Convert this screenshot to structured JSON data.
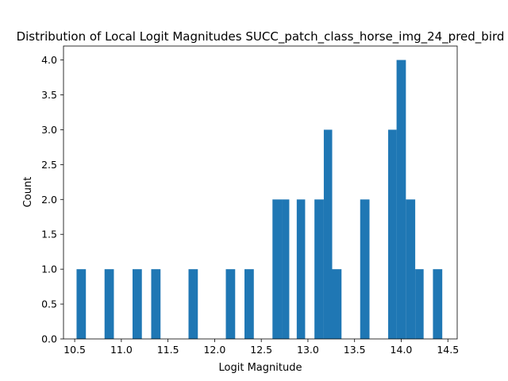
{
  "chart_data": {
    "type": "bar",
    "title": "Distribution of Local Logit Magnitudes SUCC_patch_class_horse_img_24_pred_bird",
    "xlabel": "Logit Magnitude",
    "ylabel": "Count",
    "xlim": [
      10.38,
      14.6
    ],
    "ylim": [
      0,
      4.2
    ],
    "xticks": [
      10.5,
      11.0,
      11.5,
      12.0,
      12.5,
      13.0,
      13.5,
      14.0,
      14.5
    ],
    "xtick_labels": [
      "10.5",
      "11.0",
      "11.5",
      "12.0",
      "12.5",
      "13.0",
      "13.5",
      "14.0",
      "14.5"
    ],
    "yticks": [
      0.0,
      0.5,
      1.0,
      1.5,
      2.0,
      2.5,
      3.0,
      3.5,
      4.0
    ],
    "ytick_labels": [
      "0.0",
      "0.5",
      "1.0",
      "1.5",
      "2.0",
      "2.5",
      "3.0",
      "3.5",
      "4.0"
    ],
    "bar_color": "#1f77b4",
    "grid": false,
    "legend": "none",
    "bins": [
      {
        "x0": 10.52,
        "x1": 10.62,
        "count": 1
      },
      {
        "x0": 10.82,
        "x1": 10.92,
        "count": 1
      },
      {
        "x0": 11.12,
        "x1": 11.22,
        "count": 1
      },
      {
        "x0": 11.32,
        "x1": 11.42,
        "count": 1
      },
      {
        "x0": 11.72,
        "x1": 11.82,
        "count": 1
      },
      {
        "x0": 12.12,
        "x1": 12.22,
        "count": 1
      },
      {
        "x0": 12.32,
        "x1": 12.42,
        "count": 1
      },
      {
        "x0": 12.62,
        "x1": 12.72,
        "count": 2
      },
      {
        "x0": 12.72,
        "x1": 12.8,
        "count": 2
      },
      {
        "x0": 12.88,
        "x1": 12.97,
        "count": 2
      },
      {
        "x0": 13.07,
        "x1": 13.17,
        "count": 2
      },
      {
        "x0": 13.17,
        "x1": 13.26,
        "count": 3
      },
      {
        "x0": 13.26,
        "x1": 13.36,
        "count": 1
      },
      {
        "x0": 13.56,
        "x1": 13.66,
        "count": 2
      },
      {
        "x0": 13.86,
        "x1": 13.95,
        "count": 3
      },
      {
        "x0": 13.95,
        "x1": 14.05,
        "count": 4
      },
      {
        "x0": 14.05,
        "x1": 14.15,
        "count": 2
      },
      {
        "x0": 14.15,
        "x1": 14.24,
        "count": 1
      },
      {
        "x0": 14.34,
        "x1": 14.44,
        "count": 1
      }
    ]
  }
}
